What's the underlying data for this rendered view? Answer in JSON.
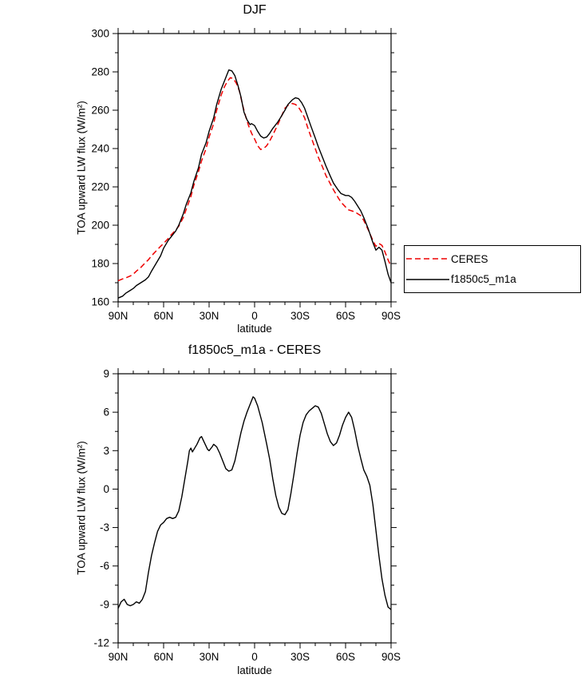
{
  "figure": {
    "background": "#ffffff",
    "axis_color": "#000000"
  },
  "chart_data": [
    {
      "type": "line",
      "title": "DJF",
      "xlabel": "latitude",
      "ylabel": "TOA upward LW flux (W/m²)",
      "xlim": [
        90,
        -90
      ],
      "ylim": [
        160,
        300
      ],
      "x_ticks": [
        90,
        60,
        30,
        0,
        -30,
        -60,
        -90
      ],
      "x_tick_labels": [
        "90N",
        "60N",
        "30N",
        "0",
        "30S",
        "60S",
        "90S"
      ],
      "y_ticks": [
        160,
        180,
        200,
        220,
        240,
        260,
        280,
        300
      ],
      "x_minor_step": 10,
      "y_minor_step": 10,
      "legend_position": "right",
      "series": [
        {
          "name": "CERES",
          "color": "#ee0000",
          "dash": "7,4",
          "width": 1.5,
          "lat": [
            90,
            87,
            85,
            82,
            80,
            78,
            75,
            72,
            70,
            68,
            65,
            62,
            60,
            57,
            55,
            52,
            50,
            47,
            45,
            42,
            40,
            37,
            35,
            32,
            30,
            27,
            25,
            22,
            20,
            18,
            16,
            14,
            12,
            10,
            8,
            6,
            4,
            2,
            0,
            -2,
            -4,
            -6,
            -8,
            -10,
            -12,
            -15,
            -17,
            -20,
            -22,
            -25,
            -27,
            -29,
            -31,
            -33,
            -35,
            -37,
            -40,
            -42,
            -45,
            -47,
            -50,
            -52,
            -55,
            -57,
            -60,
            -62,
            -64,
            -66,
            -68,
            -70,
            -72,
            -75,
            -78,
            -80,
            -82,
            -84,
            -86,
            -88,
            -90
          ],
          "values": [
            171,
            172,
            172.5,
            173.5,
            174.5,
            176,
            178,
            180.5,
            182,
            184,
            186.5,
            189,
            190.5,
            193,
            195,
            197.5,
            199.5,
            204,
            208.5,
            215,
            221,
            228,
            233.5,
            240,
            246,
            253,
            260,
            268,
            272,
            275,
            277,
            276.5,
            274,
            270,
            263,
            257,
            252,
            248,
            245,
            241.5,
            239.5,
            240,
            241.5,
            244,
            247,
            252,
            255.5,
            261,
            262.5,
            263.5,
            263,
            261.5,
            259,
            256,
            251,
            246.5,
            240,
            235.5,
            230,
            226,
            221.5,
            218.5,
            214.5,
            212,
            209.5,
            208,
            207.5,
            207,
            206,
            205,
            202.5,
            197.5,
            192,
            189,
            190.5,
            189.5,
            186,
            182,
            178.5
          ]
        },
        {
          "name": "f1850c5_m1a",
          "color": "#000000",
          "dash": "",
          "width": 1.4,
          "lat": [
            90,
            87,
            85,
            82,
            80,
            78,
            75,
            72,
            70,
            68,
            65,
            62,
            60,
            57,
            55,
            52,
            50,
            47,
            45,
            42,
            40,
            37,
            35,
            32,
            30,
            27,
            25,
            22,
            20,
            18,
            17,
            15,
            13,
            11,
            9,
            7,
            5,
            3,
            2,
            0,
            -2,
            -4,
            -6,
            -8,
            -10,
            -12,
            -15,
            -17,
            -20,
            -22,
            -25,
            -27,
            -29,
            -31,
            -33,
            -35,
            -37,
            -40,
            -42,
            -45,
            -47,
            -50,
            -52,
            -55,
            -57,
            -60,
            -62,
            -64,
            -66,
            -68,
            -70,
            -72,
            -75,
            -78,
            -80,
            -82,
            -84,
            -86,
            -88,
            -90
          ],
          "values": [
            162,
            163,
            164.5,
            166,
            167,
            168.5,
            170,
            171.5,
            173,
            176,
            180,
            184,
            188,
            192,
            194,
            197,
            200,
            206,
            211,
            217,
            223,
            230,
            237,
            243,
            249,
            256,
            263,
            271,
            275,
            279,
            281,
            280.5,
            278,
            273,
            267,
            259,
            255,
            252.5,
            253,
            252,
            249,
            246.5,
            245.5,
            246,
            248,
            250.5,
            253.5,
            256,
            260,
            263,
            265.5,
            266.5,
            266,
            264,
            261,
            256.5,
            252,
            245.5,
            241,
            235,
            231,
            225.5,
            222,
            218.5,
            216.5,
            215.5,
            215.5,
            214.5,
            212.5,
            210,
            207.5,
            204,
            198,
            191,
            187,
            188.5,
            187,
            181,
            174.5,
            170
          ]
        }
      ]
    },
    {
      "type": "line",
      "title": "f1850c5_m1a - CERES",
      "xlabel": "latitude",
      "ylabel": "TOA upward LW flux (W/m²)",
      "xlim": [
        90,
        -90
      ],
      "ylim": [
        -12,
        9
      ],
      "x_ticks": [
        90,
        60,
        30,
        0,
        -30,
        -60,
        -90
      ],
      "x_tick_labels": [
        "90N",
        "60N",
        "30N",
        "0",
        "30S",
        "60S",
        "90S"
      ],
      "y_ticks": [
        -12,
        -9,
        -6,
        -3,
        0,
        3,
        6,
        9
      ],
      "x_minor_step": 10,
      "y_minor_step": 1.5,
      "series": [
        {
          "name": "f1850c5_m1a - CERES",
          "color": "#000000",
          "dash": "",
          "width": 1.4,
          "lat": [
            90,
            88,
            86,
            84,
            82,
            80,
            78,
            76,
            74,
            72,
            70,
            68,
            66,
            64,
            62,
            60,
            58,
            56,
            54,
            52,
            50,
            48,
            46,
            44,
            43,
            42,
            41,
            40,
            38,
            36,
            35,
            33,
            31,
            30,
            28,
            27,
            25,
            23,
            21,
            19,
            17,
            15,
            13,
            11,
            9,
            7,
            5,
            3,
            1,
            0,
            -2,
            -5,
            -8,
            -10,
            -12,
            -14,
            -16,
            -18,
            -20,
            -22,
            -24,
            -26,
            -28,
            -30,
            -32,
            -34,
            -36,
            -38,
            -40,
            -42,
            -44,
            -46,
            -48,
            -50,
            -52,
            -54,
            -56,
            -58,
            -60,
            -62,
            -64,
            -66,
            -68,
            -70,
            -72,
            -74,
            -76,
            -78,
            -80,
            -82,
            -84,
            -86,
            -88,
            -90
          ],
          "values": [
            -9.3,
            -8.8,
            -8.6,
            -9.0,
            -9.1,
            -9.0,
            -8.8,
            -8.9,
            -8.6,
            -8.0,
            -6.5,
            -5.2,
            -4.2,
            -3.3,
            -2.8,
            -2.6,
            -2.3,
            -2.2,
            -2.3,
            -2.2,
            -1.7,
            -0.6,
            0.8,
            2.2,
            3.0,
            3.2,
            2.9,
            3.1,
            3.5,
            4.0,
            4.1,
            3.6,
            3.1,
            3.0,
            3.3,
            3.5,
            3.3,
            2.8,
            2.2,
            1.6,
            1.4,
            1.5,
            2.2,
            3.3,
            4.4,
            5.3,
            6.0,
            6.6,
            7.2,
            7.1,
            6.5,
            5.2,
            3.5,
            2.3,
            0.8,
            -0.5,
            -1.4,
            -1.9,
            -2.0,
            -1.6,
            -0.3,
            1.2,
            2.8,
            4.2,
            5.2,
            5.8,
            6.1,
            6.3,
            6.5,
            6.4,
            5.9,
            5.1,
            4.3,
            3.7,
            3.4,
            3.6,
            4.2,
            5.0,
            5.6,
            6.0,
            5.6,
            4.6,
            3.4,
            2.4,
            1.5,
            1.0,
            0.3,
            -1.2,
            -3.2,
            -5.2,
            -7.0,
            -8.3,
            -9.2,
            -9.4
          ]
        }
      ]
    }
  ]
}
